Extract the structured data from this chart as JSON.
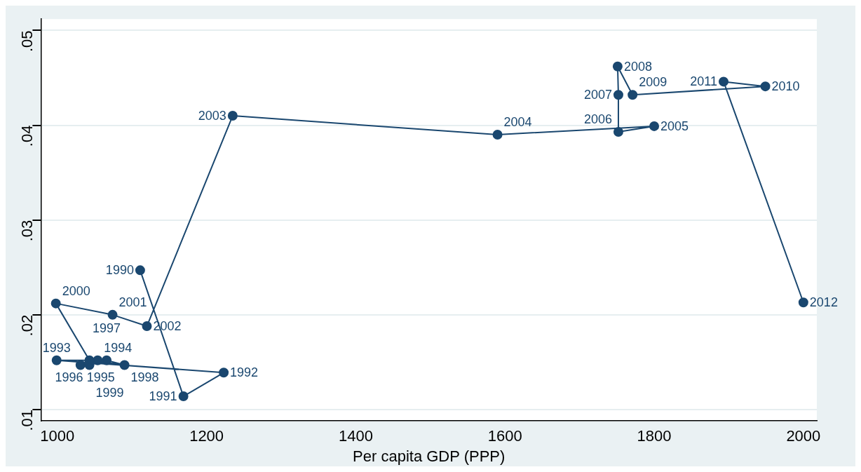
{
  "chart_data": {
    "type": "line",
    "xlabel": "Per capita GDP (PPP)",
    "xlim": [
      978,
      2018
    ],
    "xticks": [
      1000,
      1200,
      1400,
      1600,
      1800,
      2000
    ],
    "ylim": [
      0.0088,
      0.0512
    ],
    "yticks": [
      {
        "value": 0.01,
        "label": ".01"
      },
      {
        "value": 0.02,
        "label": ".02"
      },
      {
        "value": 0.03,
        "label": ".03"
      },
      {
        "value": 0.04,
        "label": ".04"
      },
      {
        "value": 0.05,
        "label": ".05"
      }
    ],
    "grid": "y",
    "marker": "circle",
    "line_style": "solid",
    "legend": false,
    "series": [
      {
        "color": "#1a476f",
        "x": [
          1111,
          1169,
          1223,
          999,
          1054,
          1031,
          1043,
          1066,
          1090,
          1043,
          998,
          1074,
          1120,
          1235,
          1590,
          1800,
          1752,
          1752,
          1751,
          1771,
          1949,
          1893,
          2000
        ],
        "values": [
          0.0247,
          0.0114,
          0.0139,
          0.0152,
          0.0152,
          0.0147,
          0.0147,
          0.0152,
          0.0147,
          0.0152,
          0.0212,
          0.02,
          0.0188,
          0.041,
          0.039,
          0.0399,
          0.0393,
          0.0432,
          0.0462,
          0.0432,
          0.0441,
          0.0446,
          0.0213
        ]
      }
    ],
    "annotations": [
      {
        "text": "1990",
        "x": 1111,
        "y": 0.0247
      },
      {
        "text": "1991",
        "x": 1169,
        "y": 0.0114
      },
      {
        "text": "1992",
        "x": 1223,
        "y": 0.0139
      },
      {
        "text": "1993",
        "x": 999,
        "y": 0.0152
      },
      {
        "text": "1994",
        "x": 1054,
        "y": 0.0152
      },
      {
        "text": "1995",
        "x": 1031,
        "y": 0.0147
      },
      {
        "text": "1996",
        "x": 1043,
        "y": 0.0147
      },
      {
        "text": "1997",
        "x": 1066,
        "y": 0.0152
      },
      {
        "text": "1998",
        "x": 1090,
        "y": 0.0147
      },
      {
        "text": "1999",
        "x": 1043,
        "y": 0.0152
      },
      {
        "text": "2000",
        "x": 998,
        "y": 0.0212
      },
      {
        "text": "2001",
        "x": 1074,
        "y": 0.02
      },
      {
        "text": "2002",
        "x": 1120,
        "y": 0.0188
      },
      {
        "text": "2003",
        "x": 1235,
        "y": 0.041
      },
      {
        "text": "2004",
        "x": 1590,
        "y": 0.039
      },
      {
        "text": "2005",
        "x": 1800,
        "y": 0.0399
      },
      {
        "text": "2006",
        "x": 1752,
        "y": 0.0393
      },
      {
        "text": "2007",
        "x": 1752,
        "y": 0.0432
      },
      {
        "text": "2008",
        "x": 1751,
        "y": 0.0462
      },
      {
        "text": "2009",
        "x": 1771,
        "y": 0.0432
      },
      {
        "text": "2010",
        "x": 1949,
        "y": 0.0441
      },
      {
        "text": "2011",
        "x": 1893,
        "y": 0.0446
      },
      {
        "text": "2012",
        "x": 2000,
        "y": 0.0213
      }
    ]
  }
}
